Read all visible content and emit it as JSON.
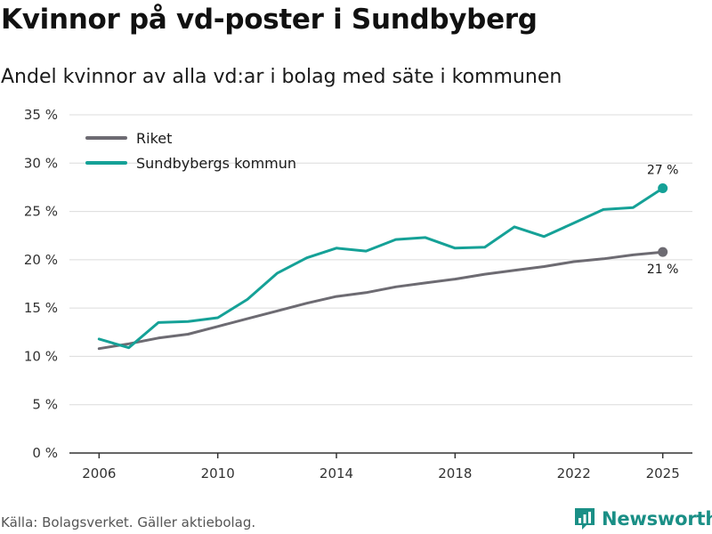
{
  "header": {
    "title": "Kvinnor på vd-poster i Sundbyberg",
    "subtitle": "Andel kvinnor av alla vd:ar i bolag med säte i kommunen"
  },
  "footer": {
    "source": "Källa: Bolagsverket. Gäller aktiebolag.",
    "brand": "Newsworthy"
  },
  "colors": {
    "riket": "#6d6b72",
    "sundbyberg": "#15a197",
    "grid": "#dcdcdc",
    "axis": "#333333"
  },
  "chart_data": {
    "type": "line",
    "title": "Kvinnor på vd-poster i Sundbyberg",
    "xlabel": "",
    "ylabel": "",
    "xlim": [
      2005,
      2026
    ],
    "ylim": [
      0,
      35
    ],
    "x_ticks": [
      2006,
      2010,
      2014,
      2018,
      2022,
      2025
    ],
    "y_ticks": [
      {
        "value": 0,
        "label": "0 %"
      },
      {
        "value": 5,
        "label": "5 %"
      },
      {
        "value": 10,
        "label": "10 %"
      },
      {
        "value": 15,
        "label": "15 %"
      },
      {
        "value": 20,
        "label": "20 %"
      },
      {
        "value": 25,
        "label": "25 %"
      },
      {
        "value": 30,
        "label": "30 %"
      },
      {
        "value": 35,
        "label": "35 %"
      }
    ],
    "grid": true,
    "legend_position": "top-left",
    "x": [
      2006,
      2007,
      2008,
      2009,
      2010,
      2011,
      2012,
      2013,
      2014,
      2015,
      2016,
      2017,
      2018,
      2019,
      2020,
      2021,
      2022,
      2023,
      2024,
      2025
    ],
    "series": [
      {
        "name": "Riket",
        "color": "#6d6b72",
        "values": [
          10.8,
          11.3,
          11.9,
          12.3,
          13.1,
          13.9,
          14.7,
          15.5,
          16.2,
          16.6,
          17.2,
          17.6,
          18.0,
          18.5,
          18.9,
          19.3,
          19.8,
          20.1,
          20.5,
          20.8
        ],
        "end_label": "21 %",
        "end_label_position": "below"
      },
      {
        "name": "Sundbybergs kommun",
        "color": "#15a197",
        "values": [
          11.8,
          10.9,
          13.5,
          13.6,
          14.0,
          15.9,
          18.6,
          20.2,
          21.2,
          20.9,
          22.1,
          22.3,
          21.2,
          21.3,
          23.4,
          22.4,
          23.8,
          25.2,
          25.4,
          27.4
        ],
        "end_label": "27 %",
        "end_label_position": "above"
      }
    ]
  }
}
